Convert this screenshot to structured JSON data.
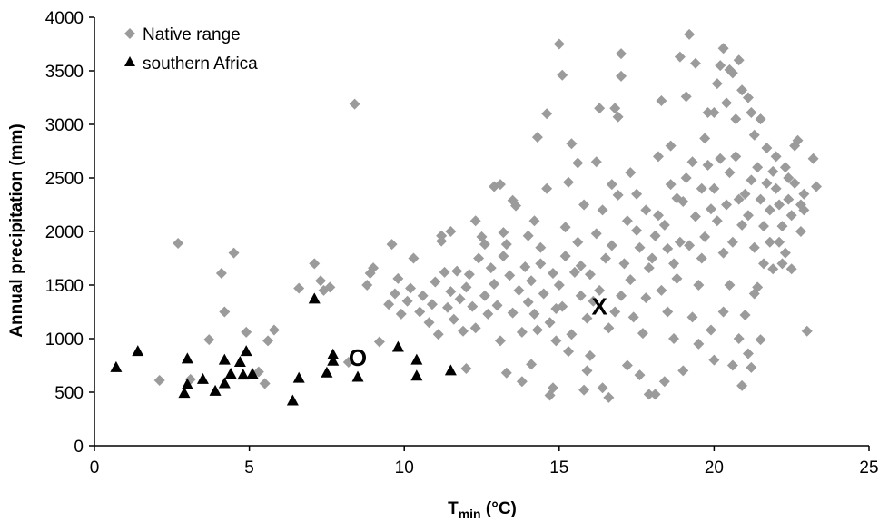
{
  "chart_data": {
    "type": "scatter",
    "xlabel_main": "T",
    "xlabel_sub": "min",
    "xlabel_unit": " (°C)",
    "ylabel": "Annual precipitation (mm)",
    "xlim": [
      0,
      25
    ],
    "ylim": [
      0,
      4000
    ],
    "xticks": [
      0,
      5,
      10,
      15,
      20,
      25
    ],
    "yticks": [
      0,
      500,
      1000,
      1500,
      2000,
      2500,
      3000,
      3500,
      4000
    ],
    "grid": false,
    "legend_position": "top-left",
    "series": [
      {
        "name": "Native range",
        "marker": "diamond",
        "color": "#9b9b9b",
        "points": [
          [
            2.7,
            1890
          ],
          [
            2.1,
            610
          ],
          [
            3.1,
            620
          ],
          [
            3.7,
            990
          ],
          [
            4.1,
            1610
          ],
          [
            4.2,
            1250
          ],
          [
            4.5,
            1800
          ],
          [
            4.9,
            1060
          ],
          [
            5.3,
            690
          ],
          [
            5.5,
            580
          ],
          [
            5.6,
            980
          ],
          [
            5.8,
            1080
          ],
          [
            6.6,
            1470
          ],
          [
            7.1,
            1700
          ],
          [
            7.3,
            1540
          ],
          [
            7.4,
            1450
          ],
          [
            7.6,
            1480
          ],
          [
            8.2,
            780
          ],
          [
            8.4,
            3190
          ],
          [
            8.8,
            1500
          ],
          [
            8.9,
            1610
          ],
          [
            9.0,
            1660
          ],
          [
            9.2,
            970
          ],
          [
            9.5,
            1320
          ],
          [
            9.6,
            1880
          ],
          [
            9.7,
            1420
          ],
          [
            9.8,
            1560
          ],
          [
            9.9,
            1230
          ],
          [
            10.1,
            1350
          ],
          [
            10.2,
            1470
          ],
          [
            10.3,
            1750
          ],
          [
            10.5,
            1250
          ],
          [
            10.6,
            1400
          ],
          [
            10.8,
            1150
          ],
          [
            10.9,
            1320
          ],
          [
            11.0,
            1530
          ],
          [
            11.1,
            1040
          ],
          [
            11.2,
            1910
          ],
          [
            11.3,
            1620
          ],
          [
            11.4,
            1290
          ],
          [
            11.5,
            1440
          ],
          [
            11.6,
            1180
          ],
          [
            11.7,
            1630
          ],
          [
            11.8,
            1370
          ],
          [
            11.9,
            1070
          ],
          [
            11.5,
            2000
          ],
          [
            11.2,
            1960
          ],
          [
            12.0,
            1480
          ],
          [
            12.1,
            1600
          ],
          [
            12.2,
            1300
          ],
          [
            12.3,
            1100
          ],
          [
            12.4,
            1750
          ],
          [
            12.5,
            1950
          ],
          [
            12.6,
            1400
          ],
          [
            12.7,
            1230
          ],
          [
            12.8,
            1660
          ],
          [
            12.9,
            1510
          ],
          [
            12.9,
            2420
          ],
          [
            12.3,
            2100
          ],
          [
            12.6,
            1880
          ],
          [
            12.0,
            720
          ],
          [
            13.0,
            1310
          ],
          [
            13.1,
            980
          ],
          [
            13.2,
            1770
          ],
          [
            13.3,
            1880
          ],
          [
            13.4,
            1590
          ],
          [
            13.5,
            1240
          ],
          [
            13.6,
            2240
          ],
          [
            13.7,
            1450
          ],
          [
            13.8,
            1060
          ],
          [
            13.9,
            1670
          ],
          [
            13.1,
            2440
          ],
          [
            13.5,
            2290
          ],
          [
            13.3,
            680
          ],
          [
            13.8,
            600
          ],
          [
            13.2,
            1990
          ],
          [
            14.0,
            1340
          ],
          [
            14.1,
            1540
          ],
          [
            14.2,
            1230
          ],
          [
            14.3,
            2880
          ],
          [
            14.4,
            1850
          ],
          [
            14.5,
            1420
          ],
          [
            14.6,
            2400
          ],
          [
            14.7,
            1150
          ],
          [
            14.8,
            1610
          ],
          [
            14.9,
            980
          ],
          [
            14.6,
            3100
          ],
          [
            14.2,
            2100
          ],
          [
            14.8,
            540
          ],
          [
            14.7,
            470
          ],
          [
            14.0,
            1960
          ],
          [
            14.4,
            1700
          ],
          [
            14.3,
            1080
          ],
          [
            14.9,
            1280
          ],
          [
            14.1,
            760
          ],
          [
            15.0,
            1500
          ],
          [
            15.1,
            1300
          ],
          [
            15.2,
            1770
          ],
          [
            15.3,
            2460
          ],
          [
            15.4,
            1040
          ],
          [
            15.5,
            1620
          ],
          [
            15.6,
            1900
          ],
          [
            15.7,
            1400
          ],
          [
            15.8,
            2250
          ],
          [
            15.9,
            1190
          ],
          [
            15.0,
            3750
          ],
          [
            15.1,
            3460
          ],
          [
            15.6,
            2640
          ],
          [
            15.4,
            2820
          ],
          [
            15.9,
            700
          ],
          [
            15.8,
            520
          ],
          [
            15.3,
            880
          ],
          [
            15.7,
            1680
          ],
          [
            15.2,
            2040
          ],
          [
            16.0,
            1600
          ],
          [
            16.1,
            1350
          ],
          [
            16.2,
            1980
          ],
          [
            16.3,
            1450
          ],
          [
            16.4,
            2200
          ],
          [
            16.5,
            1750
          ],
          [
            16.6,
            1100
          ],
          [
            16.7,
            2440
          ],
          [
            16.8,
            1250
          ],
          [
            16.9,
            2340
          ],
          [
            16.9,
            3070
          ],
          [
            16.8,
            3150
          ],
          [
            16.3,
            3150
          ],
          [
            16.6,
            450
          ],
          [
            16.4,
            540
          ],
          [
            16.0,
            840
          ],
          [
            16.2,
            2650
          ],
          [
            16.7,
            1870
          ],
          [
            17.0,
            1400
          ],
          [
            17.1,
            1700
          ],
          [
            17.2,
            2100
          ],
          [
            17.3,
            1550
          ],
          [
            17.4,
            1200
          ],
          [
            17.5,
            2350
          ],
          [
            17.6,
            1850
          ],
          [
            17.7,
            1050
          ],
          [
            17.8,
            2200
          ],
          [
            17.9,
            1660
          ],
          [
            17.0,
            3660
          ],
          [
            17.0,
            3450
          ],
          [
            17.3,
            2550
          ],
          [
            17.6,
            660
          ],
          [
            17.9,
            480
          ],
          [
            17.2,
            750
          ],
          [
            17.5,
            2010
          ],
          [
            17.8,
            1380
          ],
          [
            18.0,
            1750
          ],
          [
            18.1,
            1960
          ],
          [
            18.2,
            2150
          ],
          [
            18.3,
            1450
          ],
          [
            18.4,
            2060
          ],
          [
            18.5,
            1250
          ],
          [
            18.6,
            2440
          ],
          [
            18.7,
            1700
          ],
          [
            18.8,
            2310
          ],
          [
            18.9,
            1900
          ],
          [
            18.3,
            3220
          ],
          [
            18.6,
            2800
          ],
          [
            18.9,
            3630
          ],
          [
            18.1,
            480
          ],
          [
            18.4,
            600
          ],
          [
            18.7,
            1000
          ],
          [
            18.2,
            2700
          ],
          [
            18.5,
            1840
          ],
          [
            18.8,
            1560
          ],
          [
            19.0,
            2280
          ],
          [
            19.1,
            2500
          ],
          [
            19.2,
            1870
          ],
          [
            19.3,
            2650
          ],
          [
            19.4,
            2140
          ],
          [
            19.5,
            1500
          ],
          [
            19.6,
            2400
          ],
          [
            19.7,
            1950
          ],
          [
            19.8,
            2620
          ],
          [
            19.9,
            2210
          ],
          [
            19.2,
            3840
          ],
          [
            19.4,
            3570
          ],
          [
            19.1,
            3260
          ],
          [
            19.8,
            3110
          ],
          [
            19.0,
            700
          ],
          [
            19.5,
            950
          ],
          [
            19.3,
            1200
          ],
          [
            19.7,
            2870
          ],
          [
            19.6,
            1750
          ],
          [
            19.9,
            1080
          ],
          [
            20.0,
            2400
          ],
          [
            20.1,
            2100
          ],
          [
            20.2,
            2680
          ],
          [
            20.3,
            1800
          ],
          [
            20.4,
            2250
          ],
          [
            20.5,
            2550
          ],
          [
            20.6,
            1900
          ],
          [
            20.7,
            2700
          ],
          [
            20.8,
            2300
          ],
          [
            20.9,
            2060
          ],
          [
            20.3,
            3710
          ],
          [
            20.2,
            3550
          ],
          [
            20.5,
            3510
          ],
          [
            20.6,
            3480
          ],
          [
            20.8,
            3600
          ],
          [
            20.1,
            3380
          ],
          [
            20.9,
            3320
          ],
          [
            20.4,
            3200
          ],
          [
            20.0,
            3110
          ],
          [
            20.7,
            3050
          ],
          [
            20.0,
            800
          ],
          [
            20.6,
            750
          ],
          [
            20.9,
            560
          ],
          [
            20.3,
            1250
          ],
          [
            20.5,
            1500
          ],
          [
            20.8,
            1000
          ],
          [
            21.0,
            2350
          ],
          [
            21.1,
            2150
          ],
          [
            21.2,
            2480
          ],
          [
            21.3,
            1850
          ],
          [
            21.4,
            2600
          ],
          [
            21.5,
            2300
          ],
          [
            21.6,
            2050
          ],
          [
            21.7,
            2450
          ],
          [
            21.8,
            2200
          ],
          [
            21.9,
            2560
          ],
          [
            21.2,
            3110
          ],
          [
            21.5,
            3050
          ],
          [
            21.1,
            3250
          ],
          [
            21.3,
            2900
          ],
          [
            21.7,
            2780
          ],
          [
            21.0,
            1220
          ],
          [
            21.4,
            1480
          ],
          [
            21.6,
            1700
          ],
          [
            21.8,
            1900
          ],
          [
            21.2,
            730
          ],
          [
            21.1,
            860
          ],
          [
            21.5,
            990
          ],
          [
            21.3,
            1420
          ],
          [
            21.9,
            1650
          ],
          [
            22.0,
            2400
          ],
          [
            22.1,
            2250
          ],
          [
            22.2,
            2050
          ],
          [
            22.3,
            2600
          ],
          [
            22.4,
            2300
          ],
          [
            22.5,
            2150
          ],
          [
            22.6,
            2450
          ],
          [
            22.7,
            2850
          ],
          [
            22.8,
            2000
          ],
          [
            22.9,
            2200
          ],
          [
            22.0,
            2700
          ],
          [
            22.3,
            1800
          ],
          [
            22.5,
            1650
          ],
          [
            22.6,
            2800
          ],
          [
            22.8,
            2250
          ],
          [
            22.1,
            1900
          ],
          [
            22.4,
            2500
          ],
          [
            23.0,
            1070
          ],
          [
            23.2,
            2680
          ],
          [
            23.3,
            2420
          ],
          [
            22.9,
            2350
          ],
          [
            22.2,
            1700
          ]
        ]
      },
      {
        "name": "southern Africa",
        "marker": "triangle",
        "color": "#000000",
        "points": [
          [
            0.7,
            730
          ],
          [
            1.4,
            880
          ],
          [
            2.9,
            490
          ],
          [
            3.0,
            570
          ],
          [
            3.0,
            810
          ],
          [
            3.5,
            620
          ],
          [
            3.9,
            510
          ],
          [
            4.2,
            580
          ],
          [
            4.2,
            800
          ],
          [
            4.4,
            670
          ],
          [
            4.7,
            780
          ],
          [
            4.8,
            660
          ],
          [
            4.9,
            880
          ],
          [
            5.1,
            670
          ],
          [
            6.4,
            420
          ],
          [
            6.6,
            630
          ],
          [
            7.1,
            1370
          ],
          [
            7.5,
            680
          ],
          [
            7.7,
            850
          ],
          [
            7.7,
            790
          ],
          [
            8.5,
            640
          ],
          [
            9.8,
            920
          ],
          [
            10.4,
            650
          ],
          [
            10.4,
            800
          ],
          [
            11.5,
            700
          ]
        ]
      }
    ],
    "annotations": [
      {
        "text": "O",
        "x": 8.5,
        "y": 820
      },
      {
        "text": "X",
        "x": 16.3,
        "y": 1300
      }
    ]
  }
}
